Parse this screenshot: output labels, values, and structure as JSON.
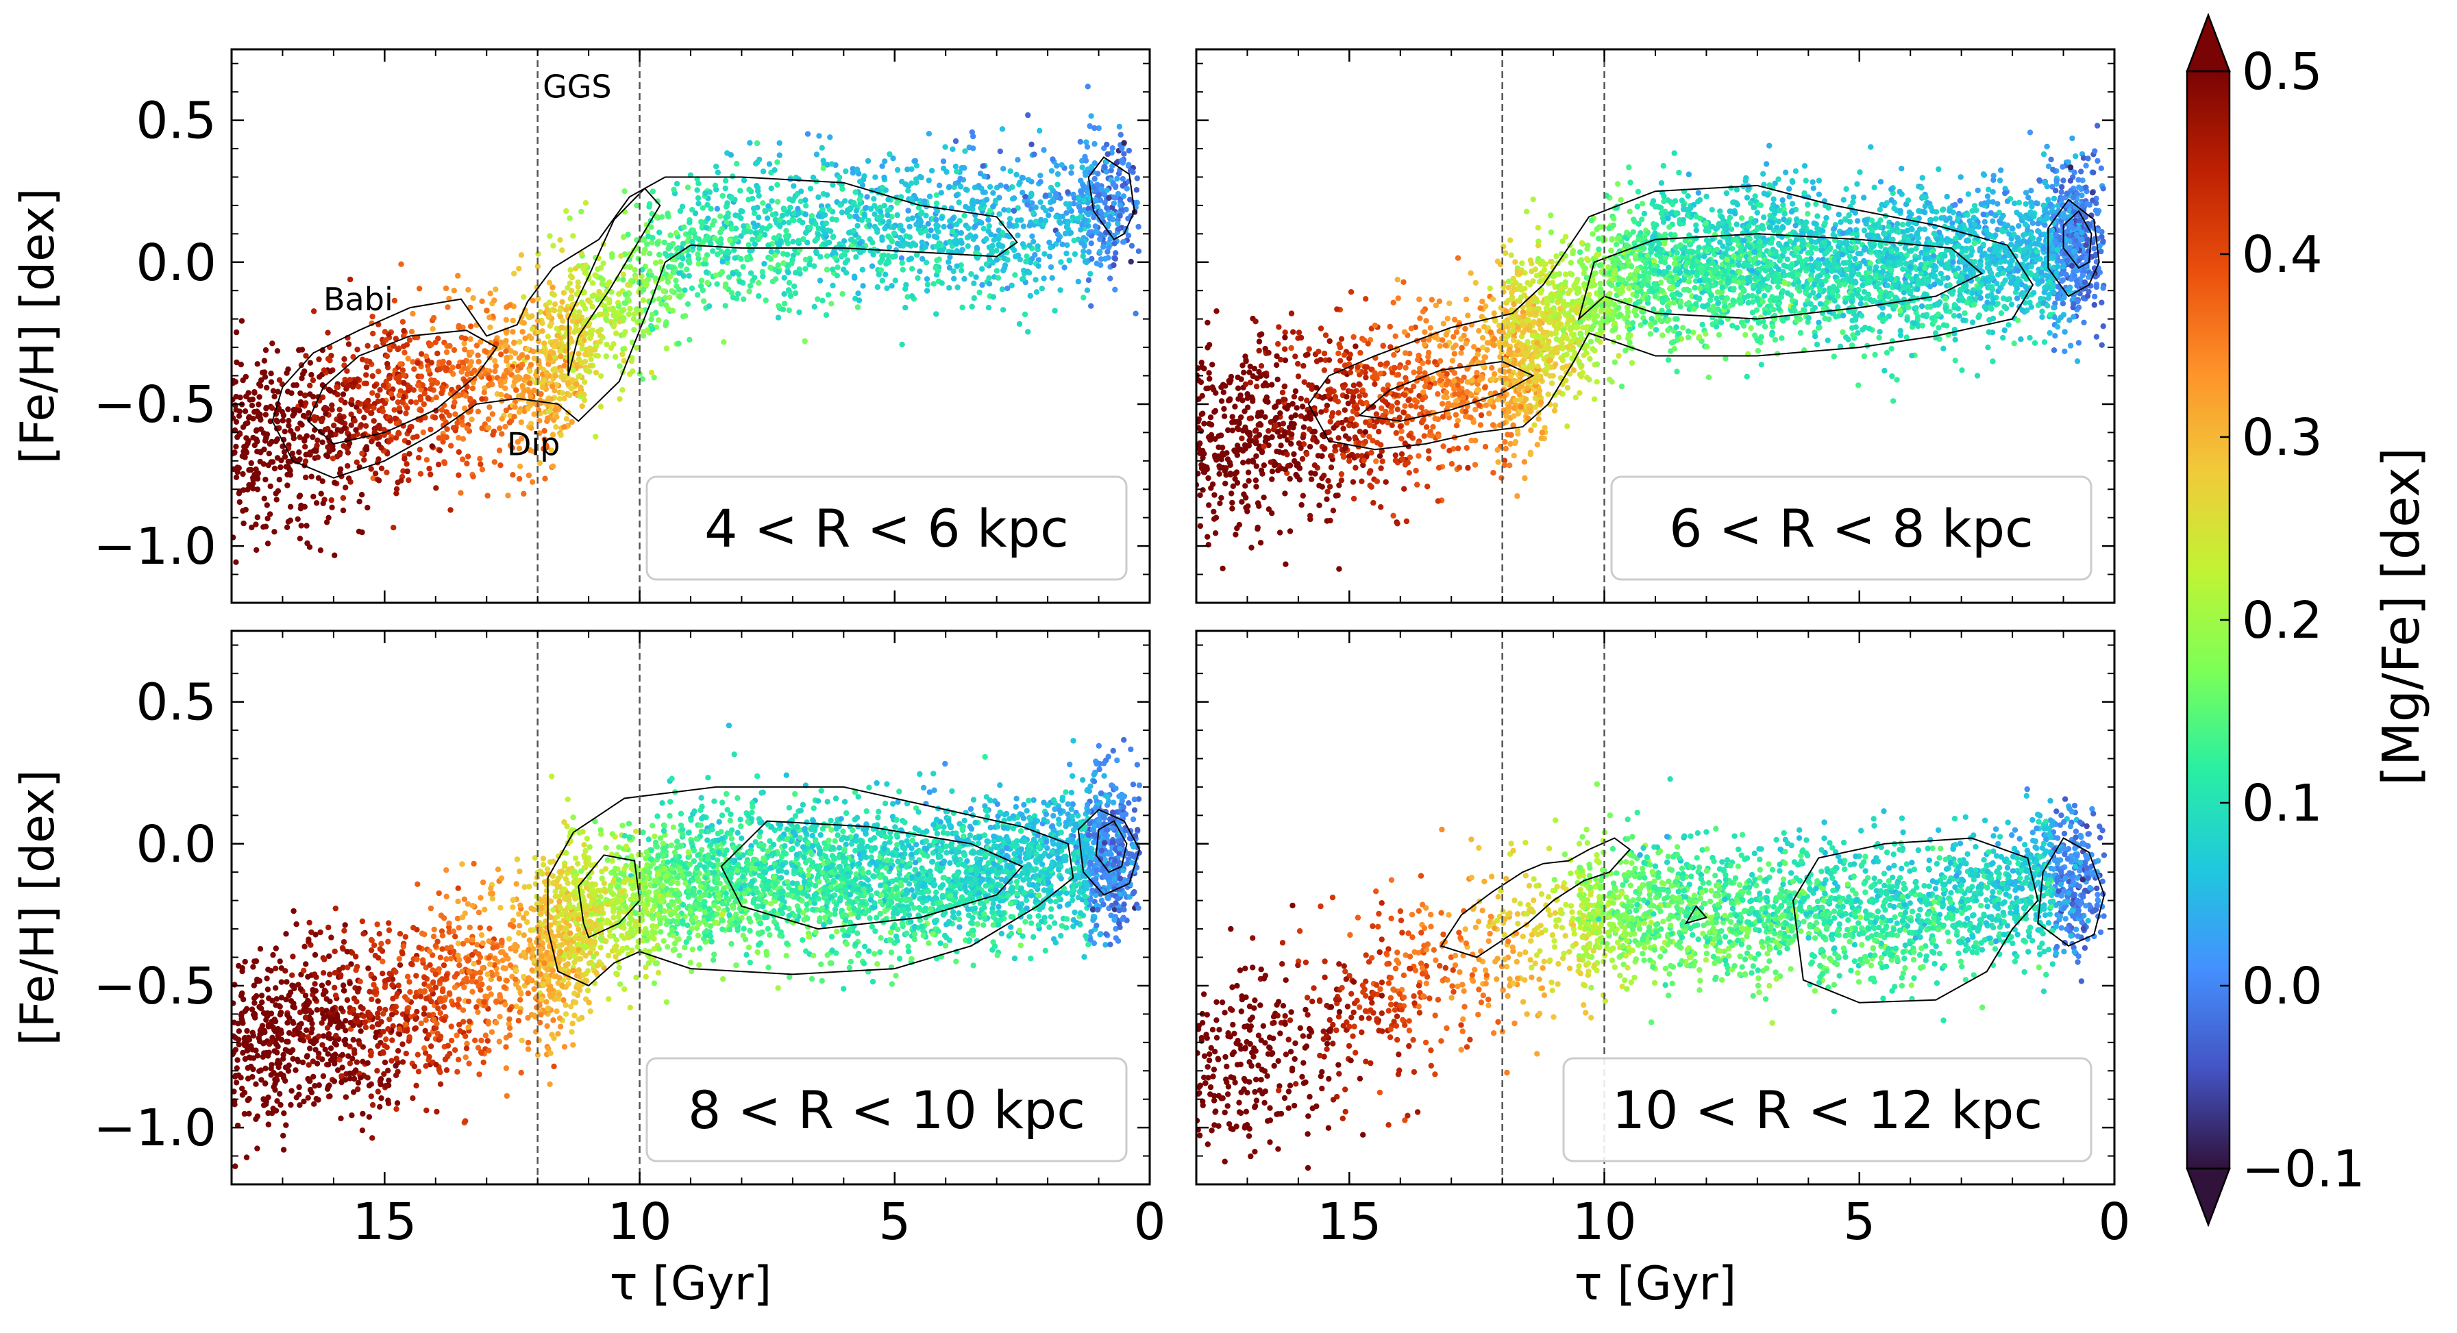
{
  "chart_data": [
    {
      "type": "scatter",
      "panel_label": "4 < R < 6 kpc",
      "xlabel": "τ [Gyr]",
      "ylabel": "[Fe/H] [dex]",
      "xlim": [
        18,
        0
      ],
      "ylim": [
        -1.2,
        0.75
      ],
      "xticks": [
        15,
        10,
        5,
        0
      ],
      "yticks": [
        0.5,
        0.0,
        -0.5,
        -1.0
      ],
      "ytick_labels": [
        "0.5",
        "0.0",
        "−0.5",
        "−1.0"
      ],
      "vlines": [
        12,
        10
      ],
      "annotations": [
        {
          "text": "GGS",
          "x": 11.9,
          "y": 0.58
        },
        {
          "text": "Babi",
          "x": 16.2,
          "y": -0.17
        },
        {
          "text": "Dip",
          "x": 12.6,
          "y": -0.68
        }
      ],
      "density_ridge": [
        [
          17,
          -0.62
        ],
        [
          16,
          -0.56
        ],
        [
          15,
          -0.5
        ],
        [
          14,
          -0.46
        ],
        [
          13,
          -0.42
        ],
        [
          12,
          -0.38
        ],
        [
          11,
          -0.25
        ],
        [
          10,
          -0.1
        ],
        [
          9,
          0.05
        ],
        [
          8,
          0.1
        ],
        [
          6,
          0.12
        ],
        [
          4,
          0.12
        ],
        [
          2,
          0.15
        ],
        [
          1,
          0.2
        ],
        [
          0.5,
          0.22
        ]
      ],
      "contours": [
        [
          [
            17.2,
            -0.56
          ],
          [
            16.8,
            -0.7
          ],
          [
            16,
            -0.76
          ],
          [
            15,
            -0.7
          ],
          [
            14,
            -0.6
          ],
          [
            13.2,
            -0.5
          ],
          [
            12.4,
            -0.48
          ],
          [
            11.6,
            -0.5
          ],
          [
            11.2,
            -0.56
          ],
          [
            10.4,
            -0.42
          ],
          [
            9.8,
            -0.15
          ],
          [
            9.5,
            0
          ],
          [
            9,
            0.06
          ],
          [
            8,
            0.05
          ],
          [
            6,
            0.05
          ],
          [
            4,
            0.03
          ],
          [
            3,
            0.02
          ],
          [
            2.6,
            0.07
          ],
          [
            3,
            0.16
          ],
          [
            4.5,
            0.2
          ],
          [
            6,
            0.28
          ],
          [
            8,
            0.3
          ],
          [
            9.5,
            0.3
          ],
          [
            10.2,
            0.23
          ],
          [
            10.8,
            0.08
          ],
          [
            11.7,
            -0.02
          ],
          [
            12.2,
            -0.14
          ],
          [
            12.4,
            -0.22
          ],
          [
            13,
            -0.26
          ],
          [
            13.5,
            -0.13
          ],
          [
            14.5,
            -0.16
          ],
          [
            15.5,
            -0.24
          ],
          [
            16.4,
            -0.32
          ],
          [
            17,
            -0.44
          ]
        ],
        [
          [
            16.5,
            -0.56
          ],
          [
            16,
            -0.64
          ],
          [
            15,
            -0.6
          ],
          [
            14,
            -0.52
          ],
          [
            13.2,
            -0.4
          ],
          [
            12.8,
            -0.3
          ],
          [
            13.4,
            -0.24
          ],
          [
            14.5,
            -0.26
          ],
          [
            15.5,
            -0.33
          ],
          [
            16.2,
            -0.44
          ]
        ],
        [
          [
            0.7,
            0.08
          ],
          [
            1.1,
            0.18
          ],
          [
            1.2,
            0.3
          ],
          [
            0.9,
            0.37
          ],
          [
            0.4,
            0.31
          ],
          [
            0.3,
            0.18
          ],
          [
            0.5,
            0.1
          ]
        ],
        [
          [
            11.4,
            -0.4
          ],
          [
            11.2,
            -0.26
          ],
          [
            10.6,
            -0.1
          ],
          [
            10,
            0.08
          ],
          [
            9.6,
            0.2
          ],
          [
            9.9,
            0.26
          ],
          [
            10.5,
            0.15
          ],
          [
            11,
            -0.05
          ],
          [
            11.4,
            -0.2
          ]
        ]
      ]
    },
    {
      "type": "scatter",
      "panel_label": "6 < R < 8 kpc",
      "xlabel": "τ [Gyr]",
      "ylabel": "",
      "xlim": [
        18,
        0
      ],
      "ylim": [
        -1.2,
        0.75
      ],
      "xticks": [
        15,
        10,
        5,
        0
      ],
      "yticks": [
        0.5,
        0.0,
        -0.5,
        -1.0
      ],
      "vlines": [
        12,
        10
      ],
      "annotations": [],
      "density_ridge": [
        [
          17,
          -0.6
        ],
        [
          16,
          -0.56
        ],
        [
          15,
          -0.52
        ],
        [
          14,
          -0.48
        ],
        [
          13,
          -0.44
        ],
        [
          12,
          -0.36
        ],
        [
          11,
          -0.24
        ],
        [
          10,
          -0.08
        ],
        [
          9,
          -0.02
        ],
        [
          7,
          0.0
        ],
        [
          5,
          -0.01
        ],
        [
          3,
          0.0
        ],
        [
          2,
          0.02
        ],
        [
          1,
          0.06
        ],
        [
          0.5,
          0.08
        ]
      ],
      "contours": [
        [
          [
            15.8,
            -0.5
          ],
          [
            15.4,
            -0.63
          ],
          [
            14.5,
            -0.66
          ],
          [
            13.5,
            -0.64
          ],
          [
            12.5,
            -0.6
          ],
          [
            11.6,
            -0.58
          ],
          [
            11.1,
            -0.5
          ],
          [
            10.6,
            -0.35
          ],
          [
            10.3,
            -0.25
          ],
          [
            9.8,
            -0.28
          ],
          [
            9,
            -0.33
          ],
          [
            7,
            -0.33
          ],
          [
            5,
            -0.3
          ],
          [
            3.5,
            -0.26
          ],
          [
            2,
            -0.2
          ],
          [
            1.6,
            -0.08
          ],
          [
            2.1,
            0.06
          ],
          [
            3.5,
            0.13
          ],
          [
            5.5,
            0.2
          ],
          [
            7,
            0.27
          ],
          [
            9,
            0.25
          ],
          [
            10.3,
            0.16
          ],
          [
            11.2,
            -0.08
          ],
          [
            11.8,
            -0.18
          ],
          [
            13,
            -0.23
          ],
          [
            14.5,
            -0.33
          ],
          [
            15.4,
            -0.4
          ]
        ],
        [
          [
            14.8,
            -0.54
          ],
          [
            14,
            -0.56
          ],
          [
            13,
            -0.52
          ],
          [
            12,
            -0.46
          ],
          [
            11.4,
            -0.4
          ],
          [
            12,
            -0.35
          ],
          [
            13.2,
            -0.38
          ],
          [
            14.2,
            -0.45
          ]
        ],
        [
          [
            10.5,
            -0.2
          ],
          [
            10,
            -0.12
          ],
          [
            9,
            -0.18
          ],
          [
            7,
            -0.2
          ],
          [
            5,
            -0.16
          ],
          [
            3.5,
            -0.12
          ],
          [
            2.6,
            -0.04
          ],
          [
            3.2,
            0.05
          ],
          [
            5,
            0.08
          ],
          [
            7,
            0.1
          ],
          [
            9,
            0.08
          ],
          [
            10.2,
            0.0
          ]
        ],
        [
          [
            0.9,
            -0.12
          ],
          [
            1.3,
            -0.02
          ],
          [
            1.3,
            0.12
          ],
          [
            0.9,
            0.22
          ],
          [
            0.4,
            0.15
          ],
          [
            0.3,
            0.0
          ],
          [
            0.5,
            -0.08
          ]
        ],
        [
          [
            0.7,
            -0.02
          ],
          [
            1.0,
            0.05
          ],
          [
            1.0,
            0.13
          ],
          [
            0.7,
            0.18
          ],
          [
            0.45,
            0.1
          ],
          [
            0.5,
            0.0
          ]
        ]
      ]
    },
    {
      "type": "scatter",
      "panel_label": "8 < R < 10 kpc",
      "xlabel": "τ [Gyr]",
      "ylabel": "[Fe/H] [dex]",
      "xlim": [
        18,
        0
      ],
      "ylim": [
        -1.2,
        0.75
      ],
      "xticks": [
        15,
        10,
        5,
        0
      ],
      "xtick_labels": [
        "15",
        "10",
        "5",
        "0"
      ],
      "yticks": [
        0.5,
        0.0,
        -0.5,
        -1.0
      ],
      "ytick_labels": [
        "0.5",
        "0.0",
        "−0.5",
        "−1.0"
      ],
      "vlines": [
        12,
        10
      ],
      "annotations": [],
      "density_ridge": [
        [
          17,
          -0.7
        ],
        [
          16,
          -0.64
        ],
        [
          15,
          -0.6
        ],
        [
          14,
          -0.54
        ],
        [
          13,
          -0.48
        ],
        [
          12,
          -0.4
        ],
        [
          11,
          -0.26
        ],
        [
          10,
          -0.18
        ],
        [
          9,
          -0.14
        ],
        [
          7,
          -0.12
        ],
        [
          5,
          -0.12
        ],
        [
          3,
          -0.1
        ],
        [
          2,
          -0.06
        ],
        [
          1,
          -0.04
        ],
        [
          0.5,
          -0.03
        ]
      ],
      "contours": [
        [
          [
            11.8,
            -0.3
          ],
          [
            11.6,
            -0.45
          ],
          [
            11.0,
            -0.5
          ],
          [
            10.5,
            -0.42
          ],
          [
            10.0,
            -0.38
          ],
          [
            9.0,
            -0.44
          ],
          [
            7.0,
            -0.46
          ],
          [
            5.0,
            -0.44
          ],
          [
            3.5,
            -0.36
          ],
          [
            2.2,
            -0.22
          ],
          [
            1.5,
            -0.12
          ],
          [
            1.6,
            0.0
          ],
          [
            2.5,
            0.06
          ],
          [
            4.0,
            0.12
          ],
          [
            6.0,
            0.2
          ],
          [
            8.5,
            0.2
          ],
          [
            10.3,
            0.16
          ],
          [
            11.3,
            0.04
          ],
          [
            11.8,
            -0.12
          ]
        ],
        [
          [
            11.0,
            -0.33
          ],
          [
            10.4,
            -0.28
          ],
          [
            10.0,
            -0.2
          ],
          [
            10.1,
            -0.06
          ],
          [
            10.7,
            -0.04
          ],
          [
            11.2,
            -0.15
          ],
          [
            11.1,
            -0.28
          ]
        ],
        [
          [
            8.4,
            -0.08
          ],
          [
            8.0,
            -0.22
          ],
          [
            6.5,
            -0.3
          ],
          [
            4.5,
            -0.26
          ],
          [
            3.0,
            -0.18
          ],
          [
            2.5,
            -0.08
          ],
          [
            3.5,
            0.0
          ],
          [
            5.5,
            0.06
          ],
          [
            7.5,
            0.08
          ]
        ],
        [
          [
            0.9,
            -0.18
          ],
          [
            1.3,
            -0.1
          ],
          [
            1.4,
            0.05
          ],
          [
            1.0,
            0.12
          ],
          [
            0.5,
            0.08
          ],
          [
            0.2,
            -0.02
          ],
          [
            0.4,
            -0.14
          ]
        ],
        [
          [
            0.8,
            -0.1
          ],
          [
            1.05,
            -0.04
          ],
          [
            1.0,
            0.05
          ],
          [
            0.7,
            0.08
          ],
          [
            0.45,
            0.0
          ],
          [
            0.55,
            -0.08
          ]
        ]
      ]
    },
    {
      "type": "scatter",
      "panel_label": "10 < R < 12 kpc",
      "xlabel": "τ [Gyr]",
      "ylabel": "",
      "xlim": [
        18,
        0
      ],
      "ylim": [
        -1.2,
        0.75
      ],
      "xticks": [
        15,
        10,
        5,
        0
      ],
      "xtick_labels": [
        "15",
        "10",
        "5",
        "0"
      ],
      "yticks": [
        0.5,
        0.0,
        -0.5,
        -1.0
      ],
      "vlines": [
        12,
        10
      ],
      "annotations": [],
      "density_ridge": [
        [
          17,
          -0.78
        ],
        [
          16,
          -0.7
        ],
        [
          15,
          -0.6
        ],
        [
          14,
          -0.5
        ],
        [
          13,
          -0.42
        ],
        [
          12,
          -0.34
        ],
        [
          11,
          -0.28
        ],
        [
          10,
          -0.24
        ],
        [
          9,
          -0.24
        ],
        [
          7,
          -0.24
        ],
        [
          5,
          -0.25
        ],
        [
          3,
          -0.22
        ],
        [
          2,
          -0.16
        ],
        [
          1,
          -0.14
        ],
        [
          0.5,
          -0.12
        ]
      ],
      "contours": [
        [
          [
            13.2,
            -0.36
          ],
          [
            12.5,
            -0.4
          ],
          [
            12.0,
            -0.34
          ],
          [
            11.5,
            -0.28
          ],
          [
            11.0,
            -0.2
          ],
          [
            10.4,
            -0.13
          ],
          [
            9.9,
            -0.1
          ],
          [
            9.5,
            -0.02
          ],
          [
            9.8,
            0.02
          ],
          [
            10.3,
            -0.02
          ],
          [
            10.7,
            -0.06
          ],
          [
            11.2,
            -0.07
          ],
          [
            11.6,
            -0.1
          ],
          [
            12.2,
            -0.17
          ],
          [
            12.8,
            -0.25
          ]
        ],
        [
          [
            6.3,
            -0.2
          ],
          [
            6.1,
            -0.48
          ],
          [
            5.0,
            -0.56
          ],
          [
            3.5,
            -0.55
          ],
          [
            2.5,
            -0.45
          ],
          [
            2.0,
            -0.3
          ],
          [
            1.5,
            -0.2
          ],
          [
            1.7,
            -0.05
          ],
          [
            2.8,
            0.02
          ],
          [
            4.5,
            0.0
          ],
          [
            5.8,
            -0.05
          ]
        ],
        [
          [
            0.9,
            -0.36
          ],
          [
            1.5,
            -0.28
          ],
          [
            1.4,
            -0.1
          ],
          [
            1.0,
            0.02
          ],
          [
            0.5,
            -0.03
          ],
          [
            0.2,
            -0.18
          ],
          [
            0.4,
            -0.32
          ]
        ],
        [
          [
            8.4,
            -0.28
          ],
          [
            8.0,
            -0.26
          ],
          [
            8.2,
            -0.22
          ]
        ]
      ]
    }
  ],
  "colorbar": {
    "label": "[Mg/Fe] [dex]",
    "vmin": -0.1,
    "vmax": 0.5,
    "ticks": [
      0.5,
      0.4,
      0.3,
      0.2,
      0.1,
      0.0,
      -0.1
    ],
    "tick_labels": [
      "0.5",
      "0.4",
      "0.3",
      "0.2",
      "0.1",
      "0.0",
      "−0.1"
    ],
    "extend": "both",
    "colormap": "turbo",
    "colormap_stops": [
      "#30123b",
      "#4454c4",
      "#4490fe",
      "#1fc8de",
      "#29efa2",
      "#7dff56",
      "#c1f334",
      "#f1ca3a",
      "#fe922a",
      "#ea4f0d",
      "#be2102",
      "#7a0403"
    ]
  }
}
